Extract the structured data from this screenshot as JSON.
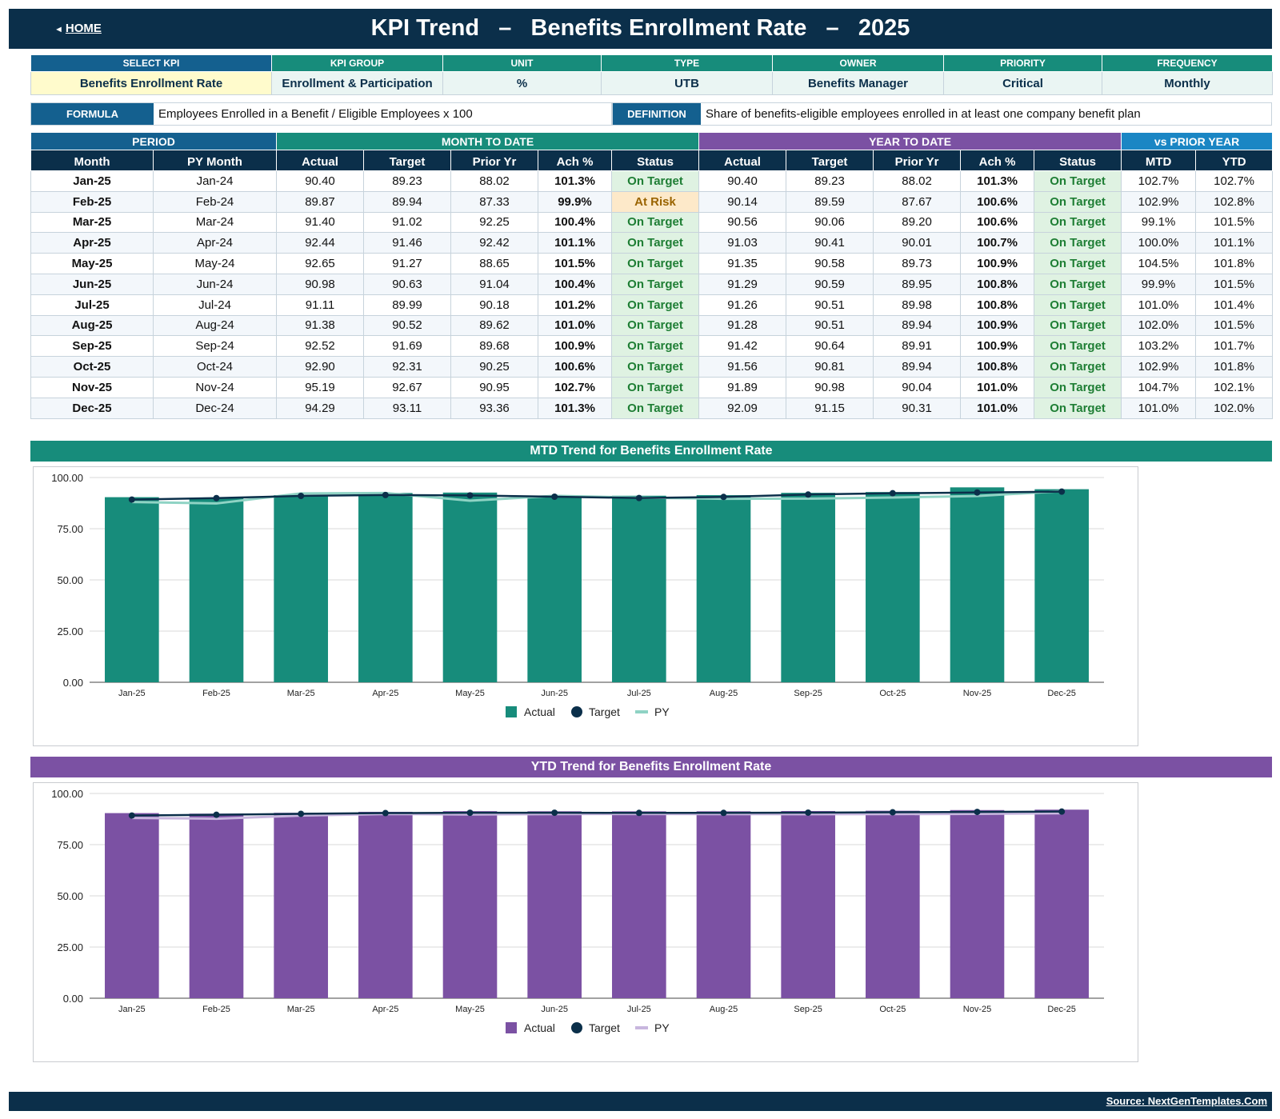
{
  "header": {
    "home_label": "HOME",
    "title": "KPI Trend   –   Benefits Enrollment Rate   –   2025"
  },
  "kpi": {
    "headers": [
      "SELECT KPI",
      "KPI GROUP",
      "UNIT",
      "TYPE",
      "OWNER",
      "PRIORITY",
      "FREQUENCY"
    ],
    "values": [
      "Benefits Enrollment Rate",
      "Enrollment & Participation",
      "%",
      "UTB",
      "Benefits Manager",
      "Critical",
      "Monthly"
    ]
  },
  "formula": {
    "label": "FORMULA",
    "text": "Employees Enrolled in a Benefit / Eligible Employees x 100",
    "def_label": "DEFINITION",
    "def_text": "Share of benefits-eligible employees enrolled in at least one company benefit plan"
  },
  "table": {
    "groups": [
      "PERIOD",
      "MONTH TO DATE",
      "YEAR TO DATE",
      "vs PRIOR YEAR"
    ],
    "columns": [
      "Month",
      "PY Month",
      "Actual",
      "Target",
      "Prior Yr",
      "Ach %",
      "Status",
      "Actual",
      "Target",
      "Prior Yr",
      "Ach %",
      "Status",
      "MTD",
      "YTD"
    ],
    "rows": [
      [
        "Jan-25",
        "Jan-24",
        "90.40",
        "89.23",
        "88.02",
        "101.3%",
        "On Target",
        "90.40",
        "89.23",
        "88.02",
        "101.3%",
        "On Target",
        "102.7%",
        "102.7%"
      ],
      [
        "Feb-25",
        "Feb-24",
        "89.87",
        "89.94",
        "87.33",
        "99.9%",
        "At Risk",
        "90.14",
        "89.59",
        "87.67",
        "100.6%",
        "On Target",
        "102.9%",
        "102.8%"
      ],
      [
        "Mar-25",
        "Mar-24",
        "91.40",
        "91.02",
        "92.25",
        "100.4%",
        "On Target",
        "90.56",
        "90.06",
        "89.20",
        "100.6%",
        "On Target",
        "99.1%",
        "101.5%"
      ],
      [
        "Apr-25",
        "Apr-24",
        "92.44",
        "91.46",
        "92.42",
        "101.1%",
        "On Target",
        "91.03",
        "90.41",
        "90.01",
        "100.7%",
        "On Target",
        "100.0%",
        "101.1%"
      ],
      [
        "May-25",
        "May-24",
        "92.65",
        "91.27",
        "88.65",
        "101.5%",
        "On Target",
        "91.35",
        "90.58",
        "89.73",
        "100.9%",
        "On Target",
        "104.5%",
        "101.8%"
      ],
      [
        "Jun-25",
        "Jun-24",
        "90.98",
        "90.63",
        "91.04",
        "100.4%",
        "On Target",
        "91.29",
        "90.59",
        "89.95",
        "100.8%",
        "On Target",
        "99.9%",
        "101.5%"
      ],
      [
        "Jul-25",
        "Jul-24",
        "91.11",
        "89.99",
        "90.18",
        "101.2%",
        "On Target",
        "91.26",
        "90.51",
        "89.98",
        "100.8%",
        "On Target",
        "101.0%",
        "101.4%"
      ],
      [
        "Aug-25",
        "Aug-24",
        "91.38",
        "90.52",
        "89.62",
        "101.0%",
        "On Target",
        "91.28",
        "90.51",
        "89.94",
        "100.9%",
        "On Target",
        "102.0%",
        "101.5%"
      ],
      [
        "Sep-25",
        "Sep-24",
        "92.52",
        "91.69",
        "89.68",
        "100.9%",
        "On Target",
        "91.42",
        "90.64",
        "89.91",
        "100.9%",
        "On Target",
        "103.2%",
        "101.7%"
      ],
      [
        "Oct-25",
        "Oct-24",
        "92.90",
        "92.31",
        "90.25",
        "100.6%",
        "On Target",
        "91.56",
        "90.81",
        "89.94",
        "100.8%",
        "On Target",
        "102.9%",
        "101.8%"
      ],
      [
        "Nov-25",
        "Nov-24",
        "95.19",
        "92.67",
        "90.95",
        "102.7%",
        "On Target",
        "91.89",
        "90.98",
        "90.04",
        "101.0%",
        "On Target",
        "104.7%",
        "102.1%"
      ],
      [
        "Dec-25",
        "Dec-24",
        "94.29",
        "93.11",
        "93.36",
        "101.3%",
        "On Target",
        "92.09",
        "91.15",
        "90.31",
        "101.0%",
        "On Target",
        "101.0%",
        "102.0%"
      ]
    ]
  },
  "colors": {
    "navy": "#0b2f4a",
    "blue": "#14608f",
    "teal": "#178c7b",
    "purple": "#7b51a3",
    "sky": "#1a86c4",
    "py_teal": "#8fd3c4",
    "py_purple": "#c8b6de"
  },
  "chart_data": [
    {
      "type": "bar",
      "title": "MTD Trend for Benefits Enrollment Rate",
      "categories": [
        "Jan-25",
        "Feb-25",
        "Mar-25",
        "Apr-25",
        "May-25",
        "Jun-25",
        "Jul-25",
        "Aug-25",
        "Sep-25",
        "Oct-25",
        "Nov-25",
        "Dec-25"
      ],
      "series": [
        {
          "name": "Actual",
          "kind": "bar",
          "values": [
            90.4,
            89.87,
            91.4,
            92.44,
            92.65,
            90.98,
            91.11,
            91.38,
            92.52,
            92.9,
            95.19,
            94.29
          ]
        },
        {
          "name": "Target",
          "kind": "line-marker",
          "values": [
            89.23,
            89.94,
            91.02,
            91.46,
            91.27,
            90.63,
            89.99,
            90.52,
            91.69,
            92.31,
            92.67,
            93.11
          ]
        },
        {
          "name": "PY",
          "kind": "line",
          "values": [
            88.02,
            87.33,
            92.25,
            92.42,
            88.65,
            91.04,
            90.18,
            89.62,
            89.68,
            90.25,
            90.95,
            93.36
          ]
        }
      ],
      "yticks": [
        "100.00",
        "75.00",
        "50.00",
        "25.00",
        "0.00"
      ],
      "ylim": [
        0,
        100
      ],
      "grid": true,
      "legend": "bottom"
    },
    {
      "type": "bar",
      "title": "YTD Trend for Benefits Enrollment Rate",
      "categories": [
        "Jan-25",
        "Feb-25",
        "Mar-25",
        "Apr-25",
        "May-25",
        "Jun-25",
        "Jul-25",
        "Aug-25",
        "Sep-25",
        "Oct-25",
        "Nov-25",
        "Dec-25"
      ],
      "series": [
        {
          "name": "Actual",
          "kind": "bar",
          "values": [
            90.4,
            90.14,
            90.56,
            91.03,
            91.35,
            91.29,
            91.26,
            91.28,
            91.42,
            91.56,
            91.89,
            92.09
          ]
        },
        {
          "name": "Target",
          "kind": "line-marker",
          "values": [
            89.23,
            89.59,
            90.06,
            90.41,
            90.58,
            90.59,
            90.51,
            90.51,
            90.64,
            90.81,
            90.98,
            91.15
          ]
        },
        {
          "name": "PY",
          "kind": "line",
          "values": [
            88.02,
            87.67,
            89.2,
            90.01,
            89.73,
            89.95,
            89.98,
            89.94,
            89.91,
            89.94,
            90.04,
            90.31
          ]
        }
      ],
      "yticks": [
        "100.00",
        "75.00",
        "50.00",
        "25.00",
        "0.00"
      ],
      "ylim": [
        0,
        100
      ],
      "grid": true,
      "legend": "bottom"
    }
  ],
  "footer": {
    "source": "Source: NextGenTemplates.Com"
  }
}
